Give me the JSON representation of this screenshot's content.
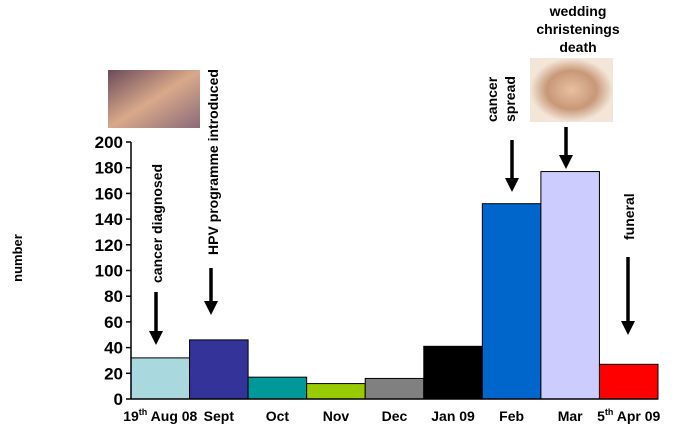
{
  "chart_data": {
    "type": "bar",
    "y_label": "number",
    "categories": [
      "19th Aug 08",
      "Sept",
      "Oct",
      "Nov",
      "Dec",
      "Jan 09",
      "Feb",
      "Mar",
      "5th Apr 09"
    ],
    "values": [
      32,
      46,
      17,
      12,
      16,
      41,
      152,
      177,
      27
    ],
    "colors": [
      "#a9d9df",
      "#333399",
      "#009999",
      "#99cc00",
      "#808080",
      "#000000",
      "#0066cc",
      "#ccccff",
      "#ff0000"
    ],
    "ylim": [
      0,
      200
    ],
    "yticks": [
      0,
      20,
      40,
      60,
      80,
      100,
      120,
      140,
      160,
      180,
      200
    ],
    "grid": false,
    "annotations": [
      {
        "lines": [
          "cancer diagnosed"
        ]
      },
      {
        "lines": [
          "HPV programme introduced"
        ]
      },
      {
        "lines": [
          "cancer",
          "spread"
        ]
      },
      {
        "lines": [
          "wedding",
          "christenings",
          "death"
        ]
      },
      {
        "lines": [
          "funeral"
        ]
      }
    ]
  }
}
